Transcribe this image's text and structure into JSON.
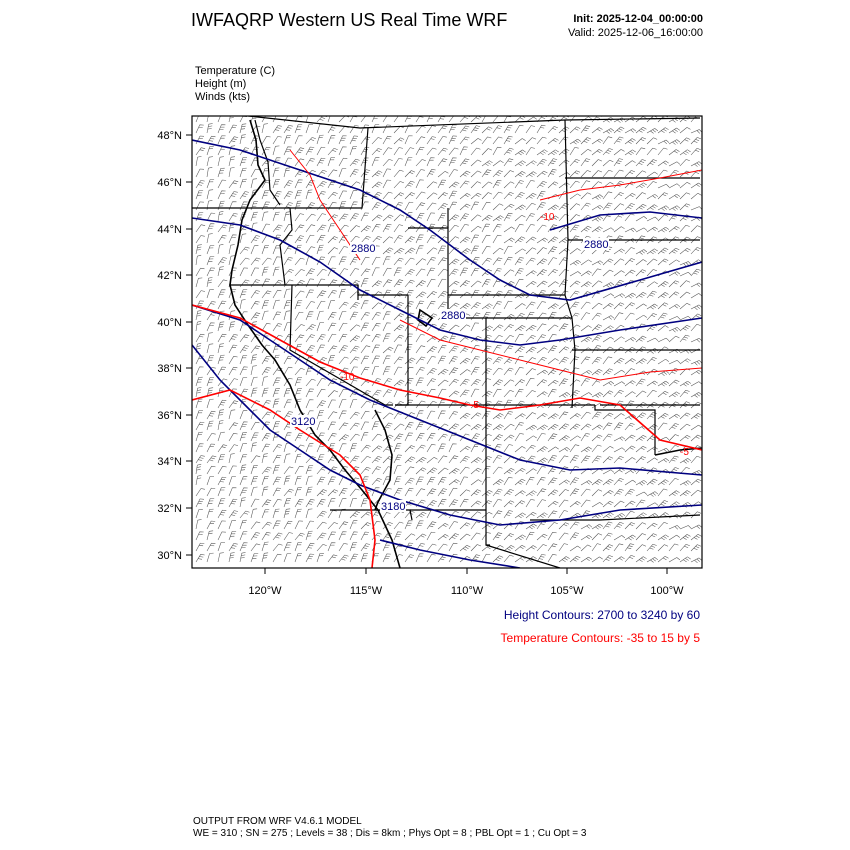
{
  "header": {
    "title": "IWFAQRP Western US Real Time WRF",
    "init": "Init: 2025-12-04_00:00:00",
    "valid": "Valid: 2025-12-06_16:00:00"
  },
  "variables": [
    "Temperature   (C)",
    "Height   (m)",
    "Winds   (kts)"
  ],
  "map": {
    "lat_labels": [
      "48°N",
      "46°N",
      "44°N",
      "42°N",
      "40°N",
      "38°N",
      "36°N",
      "34°N",
      "32°N",
      "30°N"
    ],
    "lon_labels": [
      "120°W",
      "115°W",
      "110°W",
      "105°W",
      "100°W"
    ],
    "height_contour_labels": [
      "2880",
      "2880",
      "2880",
      "3120",
      "3180"
    ],
    "temperature_contour_labels": [
      "-10",
      "-10",
      "-5",
      "-5"
    ],
    "colors": {
      "height": "#000080",
      "temperature": "#ff0000",
      "boundaries": "#000000",
      "wind_barbs": "#000000"
    }
  },
  "legend": {
    "height_contours": "Height Contours: 2700 to 3240 by 60",
    "temperature_contours": "Temperature Contours: -35 to 15 by 5"
  },
  "footer": {
    "line1": "OUTPUT FROM WRF V4.6.1 MODEL",
    "line2": "WE = 310 ; SN = 275 ; Levels = 38 ; Dis = 8km ; Phys Opt = 8 ; PBL Opt = 1 ; Cu Opt = 3"
  }
}
